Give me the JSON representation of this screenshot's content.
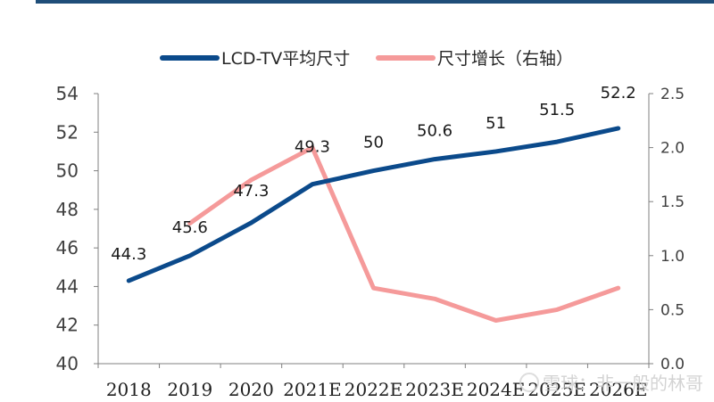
{
  "chart_data": {
    "type": "line",
    "categories": [
      "2018",
      "2019",
      "2020",
      "2021E",
      "2022E",
      "2023E",
      "2024E",
      "2025E",
      "2026E"
    ],
    "series": [
      {
        "name": "LCD-TV平均尺寸",
        "axis": "left",
        "color": "#0b4a8b",
        "values": [
          44.3,
          45.6,
          47.3,
          49.3,
          50,
          50.6,
          51,
          51.5,
          52.2
        ],
        "labels": [
          "44.3",
          "45.6",
          "47.3",
          "49.3",
          "50",
          "50.6",
          "51",
          "51.5",
          "52.2"
        ]
      },
      {
        "name": "尺寸增长（右轴）",
        "axis": "right",
        "color": "#f59a9a",
        "values": [
          null,
          1.3,
          1.7,
          2.0,
          0.7,
          0.6,
          0.4,
          0.5,
          0.7
        ]
      }
    ],
    "left_axis": {
      "ylim": [
        40,
        54
      ],
      "ticks": [
        "40",
        "42",
        "44",
        "46",
        "48",
        "50",
        "52",
        "54"
      ]
    },
    "right_axis": {
      "ylim": [
        0,
        2.5
      ],
      "ticks": [
        "0.0",
        "0.5",
        "1.0",
        "1.5",
        "2.0",
        "2.5"
      ]
    },
    "legend": {
      "position": "top"
    }
  },
  "watermark": {
    "text": "雪球：非一般的林哥"
  }
}
